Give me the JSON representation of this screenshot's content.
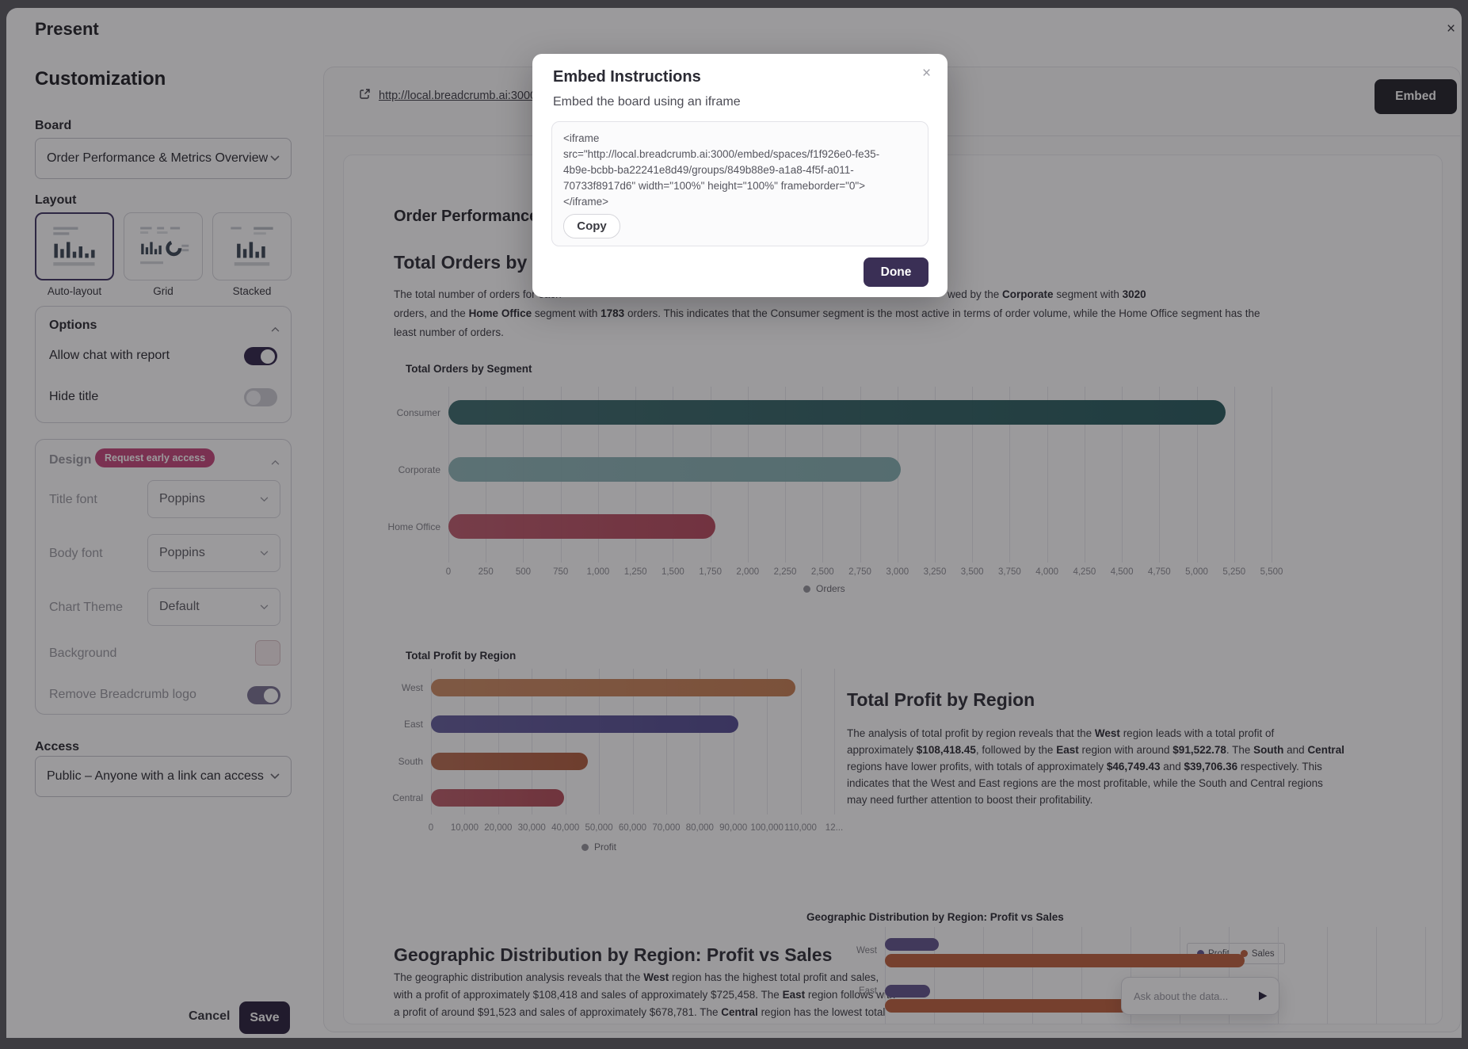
{
  "window": {
    "title": "Present",
    "close_icon": "×"
  },
  "sidebar": {
    "title": "Customization",
    "board": {
      "label": "Board",
      "value": "Order Performance & Metrics Overview"
    },
    "layout": {
      "label": "Layout",
      "options": [
        "Auto-layout",
        "Grid",
        "Stacked"
      ],
      "selected": "Auto-layout"
    },
    "options": {
      "title": "Options",
      "allow_chat": {
        "label": "Allow chat with report",
        "enabled": true
      },
      "hide_title": {
        "label": "Hide title",
        "enabled": false
      }
    },
    "design": {
      "title": "Design",
      "badge": "Request early access",
      "title_font": {
        "label": "Title font",
        "value": "Poppins"
      },
      "body_font": {
        "label": "Body font",
        "value": "Poppins"
      },
      "chart_theme": {
        "label": "Chart Theme",
        "value": "Default"
      },
      "background": {
        "label": "Background"
      },
      "remove_logo": {
        "label": "Remove Breadcrumb logo",
        "enabled": true
      }
    },
    "access": {
      "label": "Access",
      "value": "Public – Anyone with a link can access"
    },
    "cancel_label": "Cancel",
    "save_label": "Save"
  },
  "preview": {
    "url": "http://local.breadcrumb.ai:3000/rep",
    "embed_label": "Embed",
    "report_title": "Order Performance & Metrics Overview",
    "orders_section": {
      "heading": "Total Orders by Segment",
      "line1_left": "The total number of orders for each",
      "line1_right": [
        "wed by the ",
        "Corporate",
        " segment with ",
        "3020"
      ],
      "line2": [
        "orders, and the ",
        "Home Office",
        " segment with ",
        "1783",
        " orders. This indicates that the Consumer segment is the most active in terms of order volume, while the Home Office segment has the"
      ],
      "line3": "least number of orders."
    },
    "profit_section": {
      "heading": "Total Profit by Region",
      "lines": [
        [
          "The analysis of total profit by region reveals that the ",
          "West",
          " region leads with a total profit of"
        ],
        [
          "approximately ",
          "$108,418.45",
          ", followed by the ",
          "East",
          " region with around ",
          "$91,522.78",
          ". The ",
          "South",
          " and ",
          "Central"
        ],
        [
          "regions have lower profits, with totals of approximately ",
          "$46,749.43",
          " and ",
          "$39,706.36",
          " respectively. This"
        ],
        [
          "indicates that the West and East regions are the most profitable, while the South and Central regions"
        ],
        [
          "may need further attention to boost their profitability."
        ]
      ]
    },
    "geo_section": {
      "heading": "Geographic Distribution by Region: Profit vs Sales",
      "lines": [
        [
          "The geographic distribution analysis reveals that the ",
          "West",
          " region has the highest total profit and sales,"
        ],
        [
          "with a profit of approximately $108,418 and sales of approximately $725,458. The ",
          "East",
          " region follows with"
        ],
        [
          "a profit of around $91,523 and sales of approximately $678,781. The ",
          "Central",
          " region has the lowest total"
        ]
      ]
    },
    "ask_placeholder": "Ask about the data..."
  },
  "modal": {
    "title": "Embed Instructions",
    "subtitle": "Embed the board using an iframe",
    "close_icon": "×",
    "code_lines": [
      "<iframe",
      "src=\"http://local.breadcrumb.ai:3000/embed/spaces/f1f926e0-fe35-",
      "4b9e-bcbb-ba22241e8d49/groups/849b88e9-a1a8-4f5f-a011-",
      "70733f8917d6\" width=\"100%\" height=\"100%\" frameborder=\"0\">",
      "</iframe>"
    ],
    "copy_label": "Copy",
    "done_label": "Done"
  },
  "colors": {
    "accent_purple": "#352a4e",
    "badge_pink": "#c64b7e",
    "embed_button": "#27272d",
    "save_button": "#2e2540",
    "done_button": "#3a2f55"
  },
  "chart_data": [
    {
      "type": "bar",
      "orientation": "horizontal",
      "title": "Total Orders by Segment",
      "categories": [
        "Consumer",
        "Corporate",
        "Home Office"
      ],
      "values": [
        5191,
        3020,
        1783
      ],
      "xlim": [
        0,
        5500
      ],
      "xticks": [
        "0",
        "250",
        "500",
        "750",
        "1,000",
        "1,250",
        "1,500",
        "1,750",
        "2,000",
        "2,250",
        "2,500",
        "2,750",
        "3,000",
        "3,250",
        "3,500",
        "3,750",
        "4,000",
        "4,250",
        "4,500",
        "4,750",
        "5,000",
        "5,250",
        "5,500"
      ],
      "legend": [
        "Orders"
      ],
      "legend_position": "bottom",
      "grid": true,
      "bar_colors": [
        "#2d5f61",
        "#87b1b3",
        "#b84e61"
      ],
      "note": "Corporate 3020 and Home Office 1783 stated in narrative text; Consumer estimated from gridlines"
    },
    {
      "type": "bar",
      "orientation": "horizontal",
      "title": "Total Profit by Region",
      "categories": [
        "West",
        "East",
        "South",
        "Central"
      ],
      "values": [
        108418.45,
        91522.78,
        46749.43,
        39706.36
      ],
      "xlim": [
        0,
        120000
      ],
      "xticks": [
        "0",
        "10,000",
        "20,000",
        "30,000",
        "40,000",
        "50,000",
        "60,000",
        "70,000",
        "80,000",
        "90,000",
        "100,000",
        "110,000",
        "12..."
      ],
      "legend": [
        "Profit"
      ],
      "legend_position": "bottom",
      "grid": true,
      "bar_colors": [
        "#c98257",
        "#575094",
        "#b26042",
        "#b5505c"
      ]
    },
    {
      "type": "bar",
      "orientation": "horizontal",
      "title": "Geographic Distribution by Region: Profit vs Sales",
      "categories": [
        "West",
        "East"
      ],
      "series": [
        {
          "name": "Profit",
          "color": "#65598f",
          "values": [
            108418,
            91523
          ]
        },
        {
          "name": "Sales",
          "color": "#bf6442",
          "values": [
            725458,
            678781
          ]
        }
      ],
      "grid": true,
      "legend_position": "top-right",
      "clipped": true,
      "note": "chart partially cut off at bottom of visible report area"
    }
  ]
}
